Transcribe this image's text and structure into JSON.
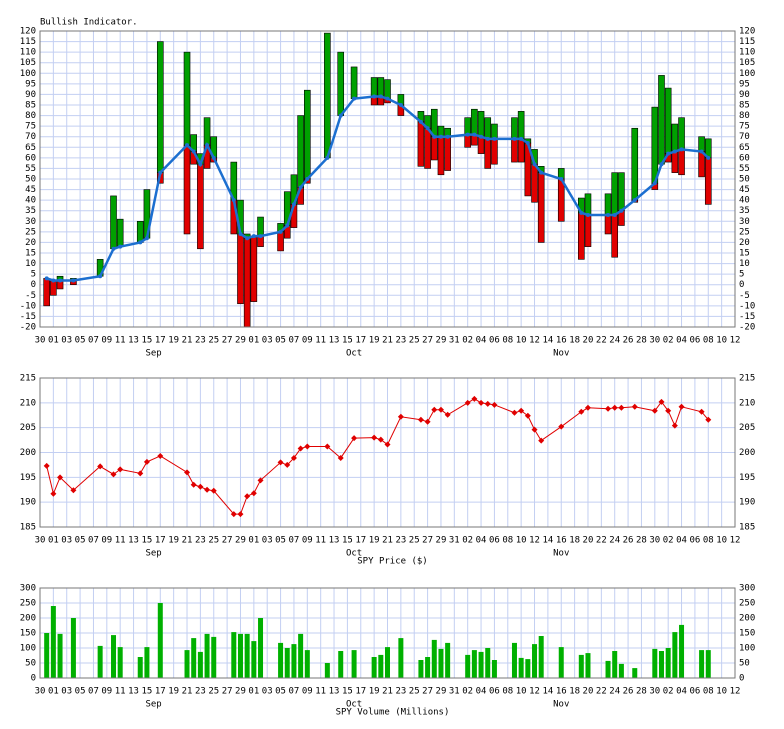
{
  "chart_data": [
    {
      "type": "range",
      "title": "Bullish Indicator.",
      "x": [
        1,
        2,
        3,
        5,
        9,
        11,
        12,
        15,
        16,
        18,
        22,
        23,
        24,
        25,
        26,
        29,
        30,
        31,
        32,
        33,
        36,
        37,
        38,
        39,
        40,
        43,
        45,
        47,
        50,
        51,
        52,
        54,
        57,
        58,
        59,
        60,
        61,
        64,
        65,
        66,
        67,
        68,
        71,
        72,
        73,
        74,
        75,
        78,
        81,
        82,
        85,
        86,
        87,
        89,
        92,
        93,
        94,
        95,
        96,
        99,
        100
      ],
      "values": [
        3,
        2,
        2,
        2,
        4,
        17,
        18,
        20,
        22,
        53,
        66,
        63,
        57,
        66,
        60,
        40,
        24,
        22,
        23,
        23,
        25,
        28,
        38,
        46,
        50,
        60,
        80,
        88,
        89,
        89,
        88,
        85,
        77,
        74,
        70,
        70,
        70,
        71,
        71,
        70,
        69,
        69,
        69,
        69,
        67,
        57,
        53,
        50,
        34,
        33,
        33,
        33,
        35,
        40,
        48,
        57,
        62,
        63,
        64,
        63,
        60
      ],
      "high": [
        3,
        2,
        4,
        3,
        12,
        42,
        31,
        30,
        45,
        115,
        110,
        71,
        62,
        79,
        70,
        58,
        40,
        24,
        23,
        32,
        29,
        44,
        52,
        80,
        92,
        119,
        110,
        103,
        98,
        98,
        97,
        90,
        82,
        80,
        83,
        75,
        74,
        79,
        83,
        82,
        79,
        76,
        79,
        82,
        69,
        64,
        56,
        55,
        41,
        43,
        43,
        53,
        53,
        74,
        84,
        99,
        93,
        76,
        79,
        70,
        69
      ],
      "low": [
        -10,
        -5,
        -2,
        0,
        4,
        17,
        18,
        20,
        22,
        48,
        24,
        57,
        17,
        55,
        58,
        24,
        -9,
        -20,
        -8,
        18,
        16,
        22,
        27,
        38,
        48,
        60,
        80,
        88,
        85,
        85,
        86,
        80,
        56,
        55,
        59,
        52,
        54,
        65,
        66,
        62,
        55,
        57,
        58,
        58,
        42,
        39,
        20,
        30,
        12,
        18,
        24,
        13,
        28,
        39,
        45,
        57,
        58,
        53,
        52,
        51,
        38
      ],
      "colors": {
        "up": "#00a000",
        "down": "#e00000",
        "line": "#1c6fd0"
      },
      "xlim": [
        0,
        104
      ],
      "xticks": [
        {
          "value": 0,
          "label": "30"
        },
        {
          "value": 2,
          "label": "01"
        },
        {
          "value": 4,
          "label": "03"
        },
        {
          "value": 6,
          "label": "05"
        },
        {
          "value": 8,
          "label": "07"
        },
        {
          "value": 10,
          "label": "09"
        },
        {
          "value": 12,
          "label": "11"
        },
        {
          "value": 14,
          "label": "13"
        },
        {
          "value": 16,
          "label": "15"
        },
        {
          "value": 18,
          "label": "17"
        },
        {
          "value": 20,
          "label": "19"
        },
        {
          "value": 22,
          "label": "21"
        },
        {
          "value": 24,
          "label": "23"
        },
        {
          "value": 26,
          "label": "25"
        },
        {
          "value": 28,
          "label": "27"
        },
        {
          "value": 30,
          "label": "29"
        },
        {
          "value": 32,
          "label": "01"
        },
        {
          "value": 34,
          "label": "03"
        },
        {
          "value": 36,
          "label": "05"
        },
        {
          "value": 38,
          "label": "07"
        },
        {
          "value": 40,
          "label": "09"
        },
        {
          "value": 42,
          "label": "11"
        },
        {
          "value": 44,
          "label": "13"
        },
        {
          "value": 46,
          "label": "15"
        },
        {
          "value": 48,
          "label": "17"
        },
        {
          "value": 50,
          "label": "19"
        },
        {
          "value": 52,
          "label": "21"
        },
        {
          "value": 54,
          "label": "23"
        },
        {
          "value": 56,
          "label": "25"
        },
        {
          "value": 58,
          "label": "27"
        },
        {
          "value": 60,
          "label": "29"
        },
        {
          "value": 62,
          "label": "31"
        },
        {
          "value": 64,
          "label": "02"
        },
        {
          "value": 66,
          "label": "04"
        },
        {
          "value": 68,
          "label": "06"
        },
        {
          "value": 70,
          "label": "08"
        },
        {
          "value": 72,
          "label": "10"
        },
        {
          "value": 74,
          "label": "12"
        },
        {
          "value": 76,
          "label": "14"
        },
        {
          "value": 78,
          "label": "16"
        },
        {
          "value": 80,
          "label": "18"
        },
        {
          "value": 82,
          "label": "20"
        },
        {
          "value": 84,
          "label": "22"
        },
        {
          "value": 86,
          "label": "24"
        },
        {
          "value": 88,
          "label": "26"
        },
        {
          "value": 90,
          "label": "28"
        },
        {
          "value": 92,
          "label": "30"
        },
        {
          "value": 94,
          "label": "02"
        },
        {
          "value": 96,
          "label": "04"
        },
        {
          "value": 98,
          "label": "06"
        },
        {
          "value": 100,
          "label": "08"
        },
        {
          "value": 102,
          "label": "10"
        },
        {
          "value": 104,
          "label": "12"
        }
      ],
      "month_labels": [
        {
          "value": 17,
          "label": "Sep"
        },
        {
          "value": 47,
          "label": "Oct"
        },
        {
          "value": 78,
          "label": "Nov"
        }
      ],
      "ylim": [
        -20,
        120
      ],
      "yticks": [
        -20,
        -15,
        -10,
        -5,
        0,
        5,
        10,
        15,
        20,
        25,
        30,
        35,
        40,
        45,
        50,
        55,
        60,
        65,
        70,
        75,
        80,
        85,
        90,
        95,
        100,
        105,
        110,
        115,
        120
      ],
      "grid": true
    },
    {
      "type": "line",
      "xlabel": "SPY Price ($)",
      "x": [
        1,
        2,
        3,
        5,
        9,
        11,
        12,
        15,
        16,
        18,
        22,
        23,
        24,
        25,
        26,
        29,
        30,
        31,
        32,
        33,
        36,
        37,
        38,
        39,
        40,
        43,
        45,
        47,
        50,
        51,
        52,
        54,
        57,
        58,
        59,
        60,
        61,
        64,
        65,
        66,
        67,
        68,
        71,
        72,
        73,
        74,
        75,
        78,
        81,
        82,
        85,
        86,
        87,
        89,
        92,
        93,
        94,
        95,
        96,
        99,
        100
      ],
      "values": [
        197.3,
        191.7,
        195,
        192.4,
        197.2,
        195.6,
        196.6,
        195.8,
        198.1,
        199.3,
        196,
        193.5,
        193.1,
        192.5,
        192.3,
        187.6,
        187.6,
        191.2,
        191.8,
        194.4,
        198,
        197.5,
        198.9,
        200.8,
        201.2,
        201.2,
        198.9,
        202.9,
        203,
        202.6,
        201.6,
        207.2,
        206.6,
        206.2,
        208.6,
        208.6,
        207.6,
        210,
        210.8,
        210,
        209.8,
        209.6,
        208,
        208.4,
        207.4,
        204.6,
        202.4,
        205.2,
        208.2,
        209,
        208.8,
        209,
        209,
        209.2,
        208.4,
        210.2,
        208.4,
        205.4,
        209.2,
        208.2,
        206.6
      ],
      "color": "#e00000",
      "xlim": [
        0,
        104
      ],
      "xticks": [
        {
          "value": 0,
          "label": "30"
        },
        {
          "value": 2,
          "label": "01"
        },
        {
          "value": 4,
          "label": "03"
        },
        {
          "value": 6,
          "label": "05"
        },
        {
          "value": 8,
          "label": "07"
        },
        {
          "value": 10,
          "label": "09"
        },
        {
          "value": 12,
          "label": "11"
        },
        {
          "value": 14,
          "label": "13"
        },
        {
          "value": 16,
          "label": "15"
        },
        {
          "value": 18,
          "label": "17"
        },
        {
          "value": 20,
          "label": "19"
        },
        {
          "value": 22,
          "label": "21"
        },
        {
          "value": 24,
          "label": "23"
        },
        {
          "value": 26,
          "label": "25"
        },
        {
          "value": 28,
          "label": "27"
        },
        {
          "value": 30,
          "label": "29"
        },
        {
          "value": 32,
          "label": "01"
        },
        {
          "value": 34,
          "label": "03"
        },
        {
          "value": 36,
          "label": "05"
        },
        {
          "value": 38,
          "label": "07"
        },
        {
          "value": 40,
          "label": "09"
        },
        {
          "value": 42,
          "label": "11"
        },
        {
          "value": 44,
          "label": "13"
        },
        {
          "value": 46,
          "label": "15"
        },
        {
          "value": 48,
          "label": "17"
        },
        {
          "value": 50,
          "label": "19"
        },
        {
          "value": 52,
          "label": "21"
        },
        {
          "value": 54,
          "label": "23"
        },
        {
          "value": 56,
          "label": "25"
        },
        {
          "value": 58,
          "label": "27"
        },
        {
          "value": 60,
          "label": "29"
        },
        {
          "value": 62,
          "label": "31"
        },
        {
          "value": 64,
          "label": "02"
        },
        {
          "value": 66,
          "label": "04"
        },
        {
          "value": 68,
          "label": "06"
        },
        {
          "value": 70,
          "label": "08"
        },
        {
          "value": 72,
          "label": "10"
        },
        {
          "value": 74,
          "label": "12"
        },
        {
          "value": 76,
          "label": "14"
        },
        {
          "value": 78,
          "label": "16"
        },
        {
          "value": 80,
          "label": "18"
        },
        {
          "value": 82,
          "label": "20"
        },
        {
          "value": 84,
          "label": "22"
        },
        {
          "value": 86,
          "label": "24"
        },
        {
          "value": 88,
          "label": "26"
        },
        {
          "value": 90,
          "label": "28"
        },
        {
          "value": 92,
          "label": "30"
        },
        {
          "value": 94,
          "label": "02"
        },
        {
          "value": 96,
          "label": "04"
        },
        {
          "value": 98,
          "label": "06"
        },
        {
          "value": 100,
          "label": "08"
        },
        {
          "value": 102,
          "label": "10"
        },
        {
          "value": 104,
          "label": "12"
        }
      ],
      "month_labels": [
        {
          "value": 17,
          "label": "Sep"
        },
        {
          "value": 47,
          "label": "Oct"
        },
        {
          "value": 78,
          "label": "Nov"
        }
      ],
      "ylim": [
        185,
        215
      ],
      "yticks": [
        185,
        190,
        195,
        200,
        205,
        210,
        215
      ],
      "grid": true
    },
    {
      "type": "bar",
      "xlabel": "SPY Volume (Millions)",
      "x": [
        1,
        2,
        3,
        5,
        9,
        11,
        12,
        15,
        16,
        18,
        22,
        23,
        24,
        25,
        26,
        29,
        30,
        31,
        32,
        33,
        36,
        37,
        38,
        39,
        40,
        43,
        45,
        47,
        50,
        51,
        52,
        54,
        57,
        58,
        59,
        60,
        61,
        64,
        65,
        66,
        67,
        68,
        71,
        72,
        73,
        74,
        75,
        78,
        81,
        82,
        85,
        86,
        87,
        89,
        92,
        93,
        94,
        95,
        96,
        99,
        100
      ],
      "values": [
        150,
        240,
        147,
        200,
        107,
        143,
        103,
        70,
        103,
        250,
        93,
        133,
        87,
        147,
        137,
        153,
        147,
        147,
        123,
        200,
        117,
        100,
        113,
        147,
        93,
        50,
        90,
        93,
        70,
        77,
        103,
        133,
        60,
        70,
        127,
        97,
        117,
        77,
        93,
        87,
        100,
        60,
        117,
        67,
        63,
        113,
        140,
        103,
        77,
        83,
        57,
        90,
        47,
        33,
        97,
        90,
        100,
        153,
        177,
        93,
        93
      ],
      "color": "#00b000",
      "xlim": [
        0,
        104
      ],
      "xticks": [
        {
          "value": 0,
          "label": "30"
        },
        {
          "value": 2,
          "label": "01"
        },
        {
          "value": 4,
          "label": "03"
        },
        {
          "value": 6,
          "label": "05"
        },
        {
          "value": 8,
          "label": "07"
        },
        {
          "value": 10,
          "label": "09"
        },
        {
          "value": 12,
          "label": "11"
        },
        {
          "value": 14,
          "label": "13"
        },
        {
          "value": 16,
          "label": "15"
        },
        {
          "value": 18,
          "label": "17"
        },
        {
          "value": 20,
          "label": "19"
        },
        {
          "value": 22,
          "label": "21"
        },
        {
          "value": 24,
          "label": "23"
        },
        {
          "value": 26,
          "label": "25"
        },
        {
          "value": 28,
          "label": "27"
        },
        {
          "value": 30,
          "label": "29"
        },
        {
          "value": 32,
          "label": "01"
        },
        {
          "value": 34,
          "label": "03"
        },
        {
          "value": 36,
          "label": "05"
        },
        {
          "value": 38,
          "label": "07"
        },
        {
          "value": 40,
          "label": "09"
        },
        {
          "value": 42,
          "label": "11"
        },
        {
          "value": 44,
          "label": "13"
        },
        {
          "value": 46,
          "label": "15"
        },
        {
          "value": 48,
          "label": "17"
        },
        {
          "value": 50,
          "label": "19"
        },
        {
          "value": 52,
          "label": "21"
        },
        {
          "value": 54,
          "label": "23"
        },
        {
          "value": 56,
          "label": "25"
        },
        {
          "value": 58,
          "label": "27"
        },
        {
          "value": 60,
          "label": "29"
        },
        {
          "value": 62,
          "label": "31"
        },
        {
          "value": 64,
          "label": "02"
        },
        {
          "value": 66,
          "label": "04"
        },
        {
          "value": 68,
          "label": "06"
        },
        {
          "value": 70,
          "label": "08"
        },
        {
          "value": 72,
          "label": "10"
        },
        {
          "value": 74,
          "label": "12"
        },
        {
          "value": 76,
          "label": "14"
        },
        {
          "value": 78,
          "label": "16"
        },
        {
          "value": 80,
          "label": "18"
        },
        {
          "value": 82,
          "label": "20"
        },
        {
          "value": 84,
          "label": "22"
        },
        {
          "value": 86,
          "label": "24"
        },
        {
          "value": 88,
          "label": "26"
        },
        {
          "value": 90,
          "label": "28"
        },
        {
          "value": 92,
          "label": "30"
        },
        {
          "value": 94,
          "label": "02"
        },
        {
          "value": 96,
          "label": "04"
        },
        {
          "value": 98,
          "label": "06"
        },
        {
          "value": 100,
          "label": "08"
        },
        {
          "value": 102,
          "label": "10"
        },
        {
          "value": 104,
          "label": "12"
        }
      ],
      "month_labels": [
        {
          "value": 17,
          "label": "Sep"
        },
        {
          "value": 47,
          "label": "Oct"
        },
        {
          "value": 78,
          "label": "Nov"
        }
      ],
      "ylim": [
        0,
        300
      ],
      "yticks": [
        0,
        50,
        100,
        150,
        200,
        250,
        300
      ],
      "grid": true
    }
  ]
}
